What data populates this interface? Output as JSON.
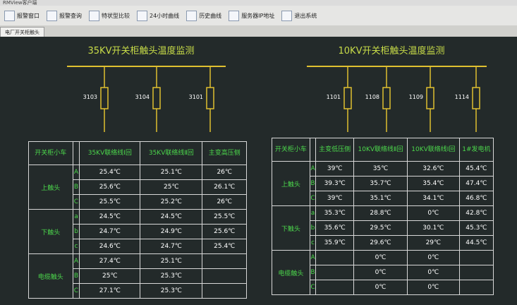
{
  "window": {
    "title": "RMView客户端",
    "toolbar": [
      "报警窗口",
      "报警查询",
      "特状型比较",
      "24小时曲线",
      "历史曲线",
      "服务器IP地址",
      "退出系统"
    ],
    "tab": "电厂开关柜触头"
  },
  "panels": [
    {
      "title": "35KV开关柜触头温度监测",
      "feeders": [
        "3103",
        "3104",
        "3101"
      ],
      "table": {
        "header": [
          "开关柜小车",
          null,
          "35KV联络线Ⅰ回",
          "35KV联络线Ⅱ回",
          "主变高压侧"
        ],
        "groups": [
          {
            "label": "上触头",
            "rows": [
              {
                "phase": "A",
                "values": [
                  "25.4℃",
                  "25.1℃",
                  "26℃"
                ]
              },
              {
                "phase": "B",
                "values": [
                  "25.6℃",
                  "25℃",
                  "26.1℃"
                ]
              },
              {
                "phase": "C",
                "values": [
                  "25.5℃",
                  "25.2℃",
                  "26℃"
                ]
              }
            ]
          },
          {
            "label": "下触头",
            "rows": [
              {
                "phase": "a",
                "values": [
                  "24.5℃",
                  "24.5℃",
                  "25.5℃"
                ]
              },
              {
                "phase": "b",
                "values": [
                  "24.7℃",
                  "24.9℃",
                  "25.6℃"
                ]
              },
              {
                "phase": "c",
                "values": [
                  "24.6℃",
                  "24.7℃",
                  "25.4℃"
                ]
              }
            ]
          },
          {
            "label": "电缆触头",
            "rows": [
              {
                "phase": "A",
                "values": [
                  "27.4℃",
                  "25.1℃",
                  null
                ]
              },
              {
                "phase": "B",
                "values": [
                  "25℃",
                  "25.3℃",
                  null
                ]
              },
              {
                "phase": "C",
                "values": [
                  "27.1℃",
                  "25.3℃",
                  null
                ]
              }
            ]
          }
        ]
      }
    },
    {
      "title": "10KV开关柜触头温度监测",
      "feeders": [
        "1101",
        "1108",
        "1109",
        "1114"
      ],
      "table": {
        "header": [
          "开关柜小车",
          null,
          "主变低压侧",
          "10KV联络线Ⅱ回",
          "10KV联络线Ⅰ回",
          "1#发电机"
        ],
        "groups": [
          {
            "label": "上触头",
            "rows": [
              {
                "phase": "A",
                "values": [
                  "39℃",
                  "35℃",
                  "32.6℃",
                  "45.4℃"
                ]
              },
              {
                "phase": "B",
                "values": [
                  "39.3℃",
                  "35.7℃",
                  "35.4℃",
                  "47.4℃"
                ]
              },
              {
                "phase": "C",
                "values": [
                  "39℃",
                  "35.1℃",
                  "34.1℃",
                  "46.8℃"
                ]
              }
            ]
          },
          {
            "label": "下触头",
            "rows": [
              {
                "phase": "a",
                "values": [
                  "35.3℃",
                  "28.8℃",
                  "0℃",
                  "42.8℃"
                ]
              },
              {
                "phase": "b",
                "values": [
                  "35.6℃",
                  "29.5℃",
                  "30.1℃",
                  "45.3℃"
                ]
              },
              {
                "phase": "c",
                "values": [
                  "35.9℃",
                  "29.6℃",
                  "29℃",
                  "44.5℃"
                ]
              }
            ]
          },
          {
            "label": "电缆触头",
            "rows": [
              {
                "phase": "A",
                "values": [
                  null,
                  "0℃",
                  "0℃",
                  null
                ]
              },
              {
                "phase": "B",
                "values": [
                  null,
                  "0℃",
                  "0℃",
                  null
                ]
              },
              {
                "phase": "C",
                "values": [
                  null,
                  "0℃",
                  "0℃",
                  null
                ]
              }
            ]
          }
        ]
      }
    }
  ]
}
